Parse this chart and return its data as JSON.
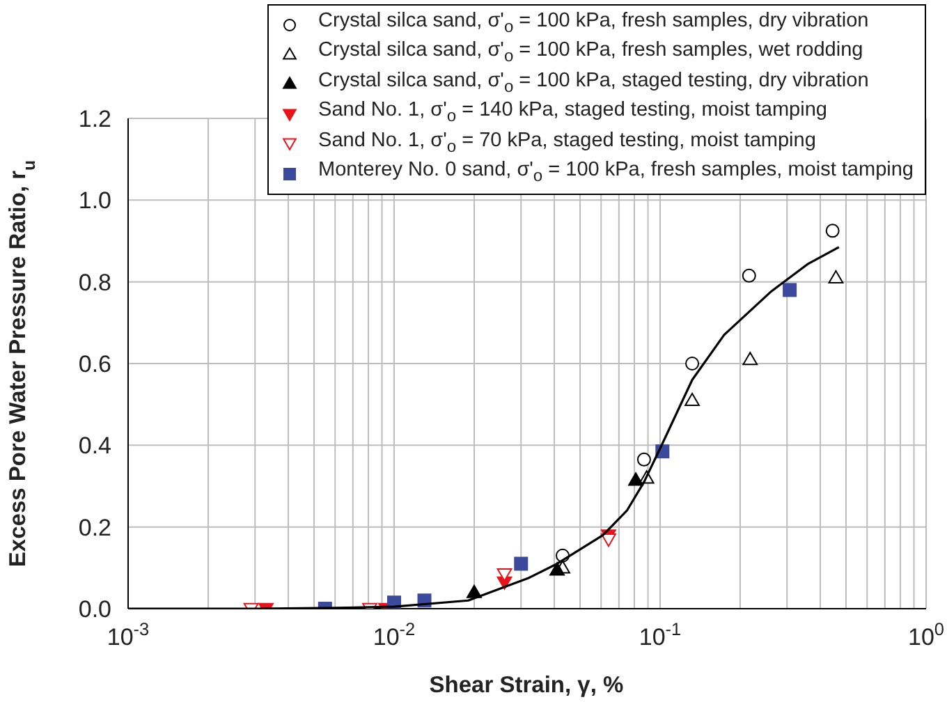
{
  "chart_data": {
    "type": "scatter",
    "xlabel": "Shear Strain, γ, %",
    "ylabel": "Excess Pore Water Pressure Ratio, r$_{u}$",
    "log": "x",
    "grid": true,
    "legend": "top right",
    "xlim": [
      0.001,
      1
    ],
    "ylim": [
      0,
      1.2
    ],
    "xticks": [
      {
        "value": 0.001,
        "label": "10$^{-3}$"
      },
      {
        "value": 0.002,
        "label": null
      },
      {
        "value": 0.003,
        "label": null
      },
      {
        "value": 0.004,
        "label": null
      },
      {
        "value": 0.005,
        "label": null
      },
      {
        "value": 0.006,
        "label": null
      },
      {
        "value": 0.007,
        "label": null
      },
      {
        "value": 0.008,
        "label": null
      },
      {
        "value": 0.009,
        "label": null
      },
      {
        "value": 0.01,
        "label": "10$^{-2}$"
      },
      {
        "value": 0.02,
        "label": null
      },
      {
        "value": 0.03,
        "label": null
      },
      {
        "value": 0.04,
        "label": null
      },
      {
        "value": 0.05,
        "label": null
      },
      {
        "value": 0.06,
        "label": null
      },
      {
        "value": 0.07,
        "label": null
      },
      {
        "value": 0.08,
        "label": null
      },
      {
        "value": 0.09,
        "label": null
      },
      {
        "value": 0.1,
        "label": "10$^{-1}$"
      },
      {
        "value": 0.2,
        "label": null
      },
      {
        "value": 0.3,
        "label": null
      },
      {
        "value": 0.4,
        "label": null
      },
      {
        "value": 0.5,
        "label": null
      },
      {
        "value": 0.6,
        "label": null
      },
      {
        "value": 0.7,
        "label": null
      },
      {
        "value": 0.8,
        "label": null
      },
      {
        "value": 0.9,
        "label": null
      },
      {
        "value": 1,
        "label": "10$^{0}$"
      }
    ],
    "yticks": [
      {
        "value": 0,
        "label": "0.0"
      },
      0.2,
      0.4,
      0.6,
      0.8,
      {
        "value": 1,
        "label": "1.0"
      },
      1.2
    ],
    "series": [
      {
        "name": "Crystal silca sand, σ'$_{o}$ = 100 kPa, fresh samples, dry vibration",
        "color": "#000000",
        "marker": "circle-open",
        "x": [
          0.043,
          0.087,
          0.132,
          0.216,
          0.445
        ],
        "values": [
          0.13,
          0.365,
          0.6,
          0.815,
          0.925
        ]
      },
      {
        "name": "Crystal silca sand, σ'$_{o}$ = 100 kPa, fresh samples, wet rodding",
        "color": "#000000",
        "marker": "triangle-open",
        "x": [
          0.043,
          0.089,
          0.132,
          0.218,
          0.458
        ],
        "values": [
          0.1,
          0.32,
          0.51,
          0.61,
          0.81
        ]
      },
      {
        "name": "Crystal silca sand, σ'$_{o}$ = 100 kPa, staged testing, dry vibration",
        "color": "#000000",
        "marker": "triangle",
        "x": [
          0.02,
          0.041,
          0.081
        ],
        "values": [
          0.04,
          0.095,
          0.315
        ]
      },
      {
        "name": "Sand No. 1, σ'$_{o}$ = 140 kPa, staged testing, moist tamping",
        "color": "#e8141b",
        "marker": "triangle-down",
        "x": [
          0.0033,
          0.0093,
          0.026,
          0.064
        ],
        "values": [
          0,
          0,
          0.065,
          0.18
        ]
      },
      {
        "name": "Sand No. 1, σ'$_{o}$ = 70 kPa, staged testing, moist tamping",
        "color": "#e8141b",
        "marker": "triangle-down-open",
        "x": [
          0.0029,
          0.0081,
          0.026,
          0.064
        ],
        "values": [
          0,
          0,
          0.085,
          0.17
        ]
      },
      {
        "name": "Monterey No. 0 sand, σ'$_{o}$ = 100 kPa, fresh samples, moist tamping",
        "color": "#3b4a9c",
        "marker": "square",
        "x": [
          0.0055,
          0.01,
          0.013,
          0.03,
          0.102,
          0.307
        ],
        "values": [
          0,
          0.015,
          0.02,
          0.11,
          0.385,
          0.78
        ]
      },
      {
        "type": "line",
        "color": "#000000",
        "marker": "none",
        "x": [
          0.001,
          0.003,
          0.006,
          0.01,
          0.019,
          0.032,
          0.041,
          0.061,
          0.075,
          0.087,
          0.103,
          0.132,
          0.174,
          0.26,
          0.358,
          0.47
        ],
        "values": [
          0,
          0,
          0.002,
          0.005,
          0.02,
          0.075,
          0.11,
          0.18,
          0.24,
          0.31,
          0.41,
          0.56,
          0.67,
          0.775,
          0.843,
          0.885
        ]
      }
    ]
  }
}
